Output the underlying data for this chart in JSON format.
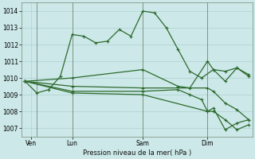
{
  "background_color": "#cce8e8",
  "grid_color": "#aacccc",
  "line_color": "#2d6a2d",
  "title": "Pression niveau de la mer( hPa )",
  "yticks": [
    1007,
    1008,
    1009,
    1010,
    1011,
    1012,
    1013,
    1014
  ],
  "ylim": [
    1006.5,
    1014.5
  ],
  "xlim": [
    -0.3,
    19.3
  ],
  "xtick_labels": [
    "Ven",
    "Lun",
    "Sam",
    "Dim"
  ],
  "xtick_positions": [
    0.5,
    4,
    10,
    15.5
  ],
  "vlines": [
    1,
    4,
    10,
    15.5
  ],
  "series": [
    {
      "x": [
        0,
        1,
        2,
        3,
        4,
        5,
        6,
        7,
        8,
        9,
        10,
        11,
        12,
        13,
        14,
        15,
        16,
        17,
        18,
        19
      ],
      "y": [
        1009.8,
        1009.1,
        1009.3,
        1010.1,
        1012.6,
        1012.5,
        1012.1,
        1012.2,
        1012.9,
        1012.5,
        1014.0,
        1013.9,
        1013.0,
        1011.7,
        1010.4,
        1010.0,
        1010.5,
        1010.4,
        1010.6,
        1010.1
      ]
    },
    {
      "x": [
        0,
        4,
        10,
        13,
        14,
        15.5,
        16,
        17,
        18,
        19
      ],
      "y": [
        1009.8,
        1010.0,
        1010.5,
        1009.5,
        1009.4,
        1011.0,
        1010.5,
        1009.8,
        1010.6,
        1010.2
      ]
    },
    {
      "x": [
        0,
        4,
        10,
        15.5,
        16,
        17,
        18,
        19
      ],
      "y": [
        1009.8,
        1009.5,
        1009.4,
        1009.4,
        1009.2,
        1008.5,
        1008.1,
        1007.5
      ]
    },
    {
      "x": [
        0,
        4,
        10,
        13,
        14,
        15,
        15.5,
        16,
        17,
        18,
        19
      ],
      "y": [
        1009.8,
        1009.2,
        1009.2,
        1009.3,
        1009.0,
        1008.7,
        1008.0,
        1008.2,
        1006.9,
        1007.3,
        1007.5
      ]
    },
    {
      "x": [
        0,
        4,
        10,
        15.5,
        16,
        17,
        18,
        19
      ],
      "y": [
        1009.8,
        1009.1,
        1009.0,
        1008.0,
        1008.0,
        1007.5,
        1006.9,
        1007.2
      ]
    }
  ]
}
